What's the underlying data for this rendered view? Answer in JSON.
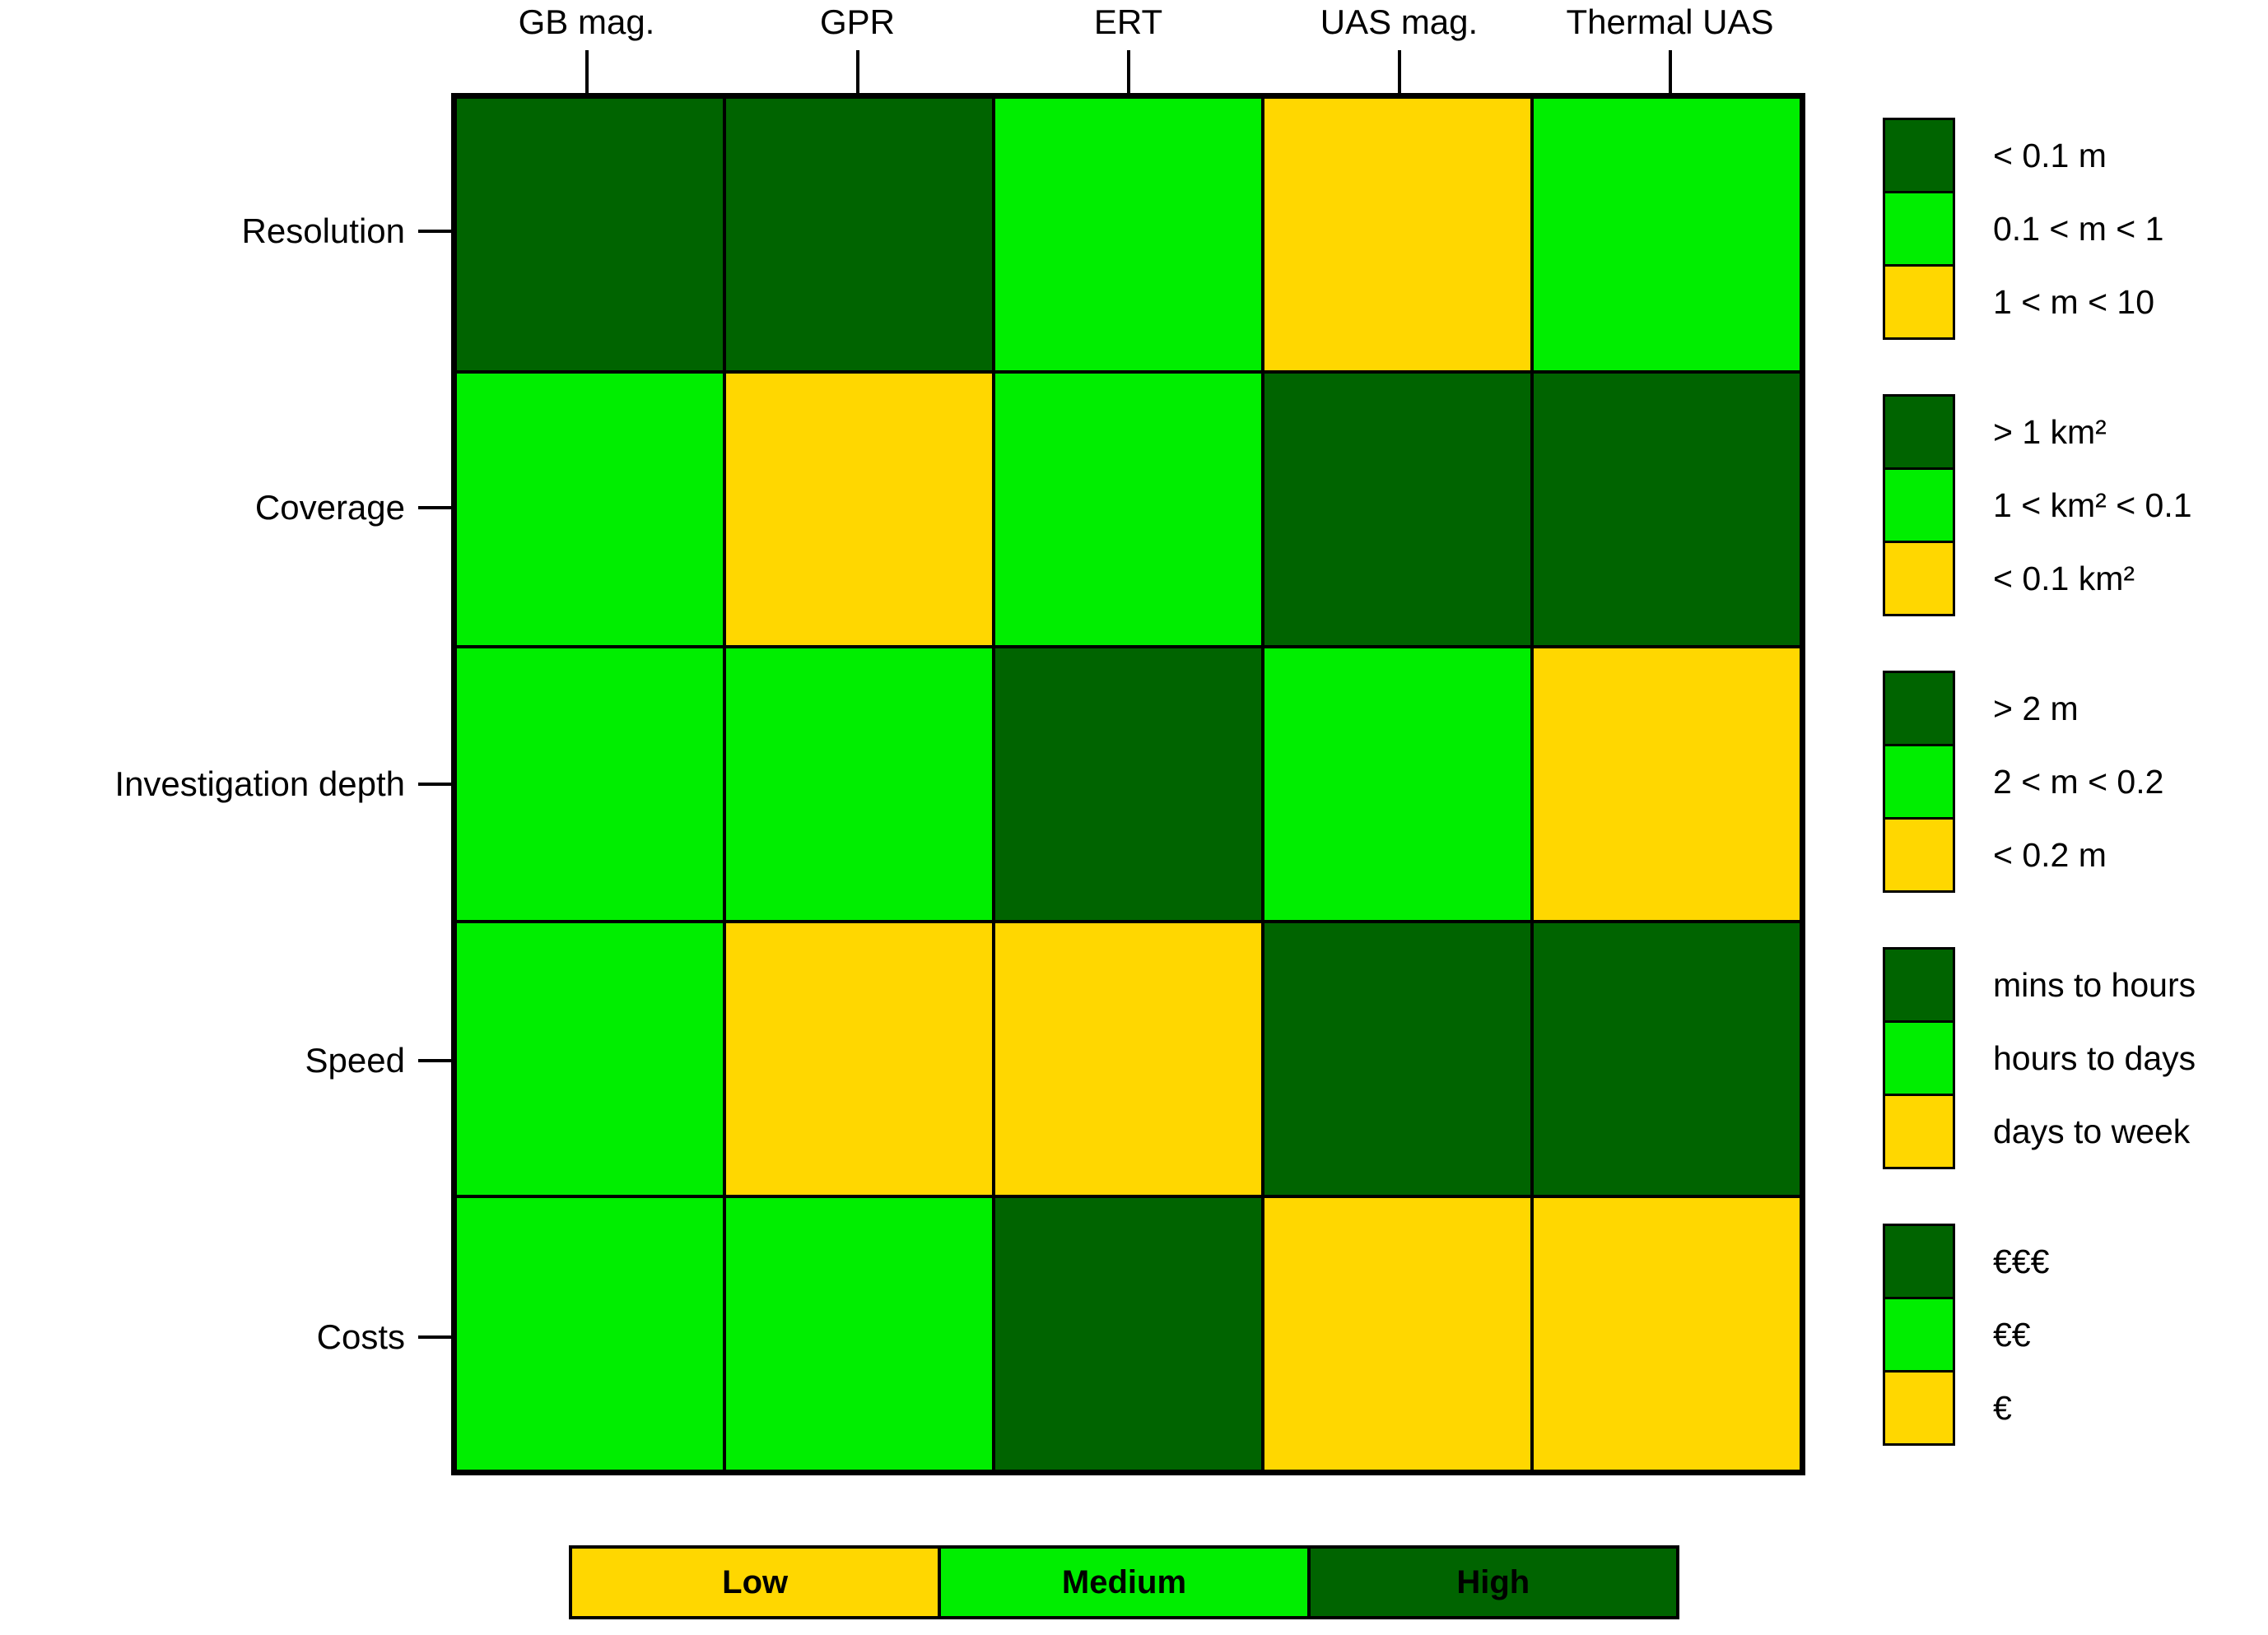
{
  "chart_data": {
    "type": "heatmap",
    "title": "",
    "xlabel": "",
    "ylabel": "",
    "grid": "on",
    "legend_position": "right",
    "columns": [
      "GB mag.",
      "GPR",
      "ERT",
      "UAS mag.",
      "Thermal UAS"
    ],
    "rows": [
      "Resolution",
      "Coverage",
      "Investigation depth",
      "Speed",
      "Costs"
    ],
    "values": [
      [
        "high",
        "high",
        "medium",
        "low",
        "medium"
      ],
      [
        "medium",
        "low",
        "medium",
        "high",
        "high"
      ],
      [
        "medium",
        "medium",
        "high",
        "medium",
        "low"
      ],
      [
        "medium",
        "low",
        "low",
        "high",
        "high"
      ],
      [
        "medium",
        "medium",
        "high",
        "low",
        "low"
      ]
    ],
    "color_map": {
      "low": "#FFD700",
      "medium": "#00EE00",
      "high": "#006400"
    },
    "cell_border_color": "#000000",
    "row_legends": [
      {
        "row": "Resolution",
        "entries": [
          {
            "level": "high",
            "label": "< 0.1 m"
          },
          {
            "level": "medium",
            "label": "0.1 < m < 1"
          },
          {
            "level": "low",
            "label": "1 < m < 10"
          }
        ]
      },
      {
        "row": "Coverage",
        "entries": [
          {
            "level": "high",
            "label": "> 1 km²"
          },
          {
            "level": "medium",
            "label": "1 < km² < 0.1"
          },
          {
            "level": "low",
            "label": "< 0.1 km²"
          }
        ]
      },
      {
        "row": "Investigation depth",
        "entries": [
          {
            "level": "high",
            "label": "> 2 m"
          },
          {
            "level": "medium",
            "label": "2 < m < 0.2"
          },
          {
            "level": "low",
            "label": "< 0.2 m"
          }
        ]
      },
      {
        "row": "Speed",
        "entries": [
          {
            "level": "high",
            "label": "mins to hours"
          },
          {
            "level": "medium",
            "label": "hours to days"
          },
          {
            "level": "low",
            "label": "days to week"
          }
        ]
      },
      {
        "row": "Costs",
        "entries": [
          {
            "level": "high",
            "label": "€€€"
          },
          {
            "level": "medium",
            "label": "€€"
          },
          {
            "level": "low",
            "label": "€"
          }
        ]
      }
    ],
    "scale_legend": [
      {
        "level": "low",
        "label": "Low"
      },
      {
        "level": "medium",
        "label": "Medium"
      },
      {
        "level": "high",
        "label": "High"
      }
    ]
  }
}
